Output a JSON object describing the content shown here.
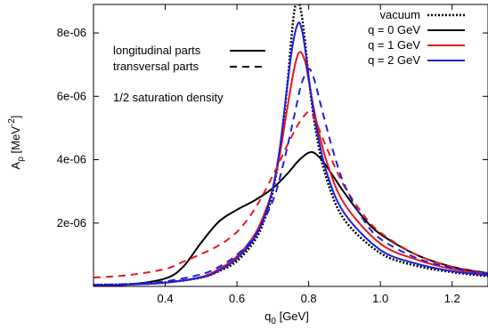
{
  "chart_data": {
    "type": "line",
    "xlabel": "q",
    "xlabel_sub": "0",
    "xlabel_unit": " [GeV]",
    "ylabel": "A",
    "ylabel_sub": "ρ",
    "ylabel_unit": " [MeV",
    "ylabel_sup": "-2",
    "ylabel_close": "]",
    "xlim": [
      0.2,
      1.3
    ],
    "ylim": [
      0,
      8.9e-06
    ],
    "xticks": [
      {
        "v": 0.4,
        "label": "0.4"
      },
      {
        "v": 0.6,
        "label": "0.6"
      },
      {
        "v": 0.8,
        "label": "0.8"
      },
      {
        "v": 1.0,
        "label": "1.0"
      },
      {
        "v": 1.2,
        "label": "1.2"
      }
    ],
    "yticks": [
      {
        "v": 2e-06,
        "label": "2e-06"
      },
      {
        "v": 4e-06,
        "label": "4e-06"
      },
      {
        "v": 6e-06,
        "label": "6e-06"
      },
      {
        "v": 8e-06,
        "label": "8e-06"
      }
    ],
    "legend_position": "top-right",
    "legend": [
      {
        "label": "vacuum",
        "color": "#000000",
        "style": "dotted"
      },
      {
        "label": "q = 0 GeV",
        "color": "#000000",
        "style": "solid"
      },
      {
        "label": "q = 1 GeV",
        "color": "#e31a1c",
        "style": "solid"
      },
      {
        "label": "q = 2 GeV",
        "color": "#1f1fd6",
        "style": "solid"
      }
    ],
    "style_key": [
      {
        "label": "longitudinal parts",
        "style": "solid"
      },
      {
        "label": "transversal parts",
        "style": "dashed"
      }
    ],
    "annotation": "1/2 saturation density",
    "series": [
      {
        "key": "vacuum",
        "color": "#000000",
        "style": "dotted",
        "x": [
          0.2,
          0.3,
          0.4,
          0.5,
          0.55,
          0.6,
          0.65,
          0.68,
          0.7,
          0.72,
          0.74,
          0.75,
          0.76,
          0.77,
          0.78,
          0.79,
          0.8,
          0.82,
          0.85,
          0.9,
          1.0,
          1.1,
          1.2,
          1.3
        ],
        "y": [
          5e-08,
          7e-08,
          1.2e-07,
          2.8e-07,
          4.8e-07,
          8e-07,
          1.45e-06,
          2.2e-06,
          3e-06,
          4.3e-06,
          6.3e-06,
          7.6e-06,
          8.7e-06,
          9e-06,
          8.6e-06,
          7.7e-06,
          6.6e-06,
          4.9e-06,
          3.4e-06,
          2.1e-06,
          1.05e-06,
          6.5e-07,
          4.5e-07,
          3.2e-07
        ]
      },
      {
        "key": "q0_longitudinal",
        "color": "#000000",
        "style": "solid",
        "x": [
          0.2,
          0.3,
          0.4,
          0.45,
          0.5,
          0.55,
          0.6,
          0.65,
          0.7,
          0.74,
          0.77,
          0.79,
          0.8,
          0.81,
          0.82,
          0.84,
          0.87,
          0.9,
          0.95,
          1.0,
          1.1,
          1.2,
          1.3
        ],
        "y": [
          3e-08,
          6e-08,
          2.5e-07,
          6.2e-07,
          1.38e-06,
          2.05e-06,
          2.42e-06,
          2.72e-06,
          3.1e-06,
          3.55e-06,
          3.95e-06,
          4.15e-06,
          4.22e-06,
          4.24e-06,
          4.18e-06,
          3.95e-06,
          3.45e-06,
          2.95e-06,
          2.2e-06,
          1.65e-06,
          1e-06,
          6.2e-07,
          4.2e-07
        ]
      },
      {
        "key": "q1_longitudinal",
        "color": "#e31a1c",
        "style": "solid",
        "x": [
          0.2,
          0.3,
          0.4,
          0.5,
          0.55,
          0.6,
          0.65,
          0.68,
          0.7,
          0.72,
          0.74,
          0.76,
          0.775,
          0.79,
          0.8,
          0.82,
          0.85,
          0.9,
          1.0,
          1.1,
          1.2,
          1.3
        ],
        "y": [
          4e-08,
          6e-08,
          1.2e-07,
          3e-07,
          5.5e-07,
          9.5e-07,
          1.65e-06,
          2.4e-06,
          3.1e-06,
          4.2e-06,
          5.6e-06,
          6.9e-06,
          7.4e-06,
          7.1e-06,
          6.5e-06,
          5.3e-06,
          3.95e-06,
          2.6e-06,
          1.35e-06,
          8.5e-07,
          5.5e-07,
          4e-07
        ]
      },
      {
        "key": "q2_longitudinal",
        "color": "#1f1fd6",
        "style": "solid",
        "x": [
          0.2,
          0.3,
          0.4,
          0.5,
          0.55,
          0.6,
          0.65,
          0.68,
          0.7,
          0.72,
          0.74,
          0.755,
          0.77,
          0.78,
          0.79,
          0.8,
          0.82,
          0.85,
          0.9,
          1.0,
          1.1,
          1.2,
          1.3
        ],
        "y": [
          4e-08,
          6e-08,
          1.2e-07,
          2.8e-07,
          5e-07,
          8.8e-07,
          1.55e-06,
          2.3e-06,
          3.1e-06,
          4.4e-06,
          6.3e-06,
          7.6e-06,
          8.3e-06,
          8.15e-06,
          7.5e-06,
          6.6e-06,
          5.1e-06,
          3.6e-06,
          2.3e-06,
          1.15e-06,
          7.2e-07,
          4.8e-07,
          3.5e-07
        ]
      },
      {
        "key": "q1_transversal",
        "color": "#e31a1c",
        "style": "dashed",
        "x": [
          0.2,
          0.3,
          0.4,
          0.45,
          0.5,
          0.55,
          0.6,
          0.65,
          0.7,
          0.74,
          0.77,
          0.79,
          0.8,
          0.81,
          0.82,
          0.84,
          0.87,
          0.9,
          0.95,
          1.0,
          1.1,
          1.2,
          1.3
        ],
        "y": [
          2.8e-07,
          3.6e-07,
          5.5e-07,
          7.8e-07,
          1.02e-06,
          1.3e-06,
          1.72e-06,
          2.45e-06,
          3.5e-06,
          4.45e-06,
          5.1e-06,
          5.42e-06,
          5.5e-06,
          5.42e-06,
          5.22e-06,
          4.65e-06,
          3.85e-06,
          3.15e-06,
          2.3e-06,
          1.7e-06,
          1e-06,
          6.2e-07,
          4.2e-07
        ]
      },
      {
        "key": "q2_transversal",
        "color": "#1f1fd6",
        "style": "dashed",
        "x": [
          0.2,
          0.3,
          0.4,
          0.5,
          0.55,
          0.6,
          0.65,
          0.7,
          0.73,
          0.76,
          0.78,
          0.8,
          0.81,
          0.82,
          0.84,
          0.87,
          0.9,
          0.95,
          1.0,
          1.1,
          1.2,
          1.3
        ],
        "y": [
          5e-08,
          8e-08,
          1.6e-07,
          3.8e-07,
          6.2e-07,
          1e-06,
          1.6e-06,
          2.7e-06,
          3.9e-06,
          5.4e-06,
          6.4e-06,
          6.85e-06,
          6.7e-06,
          6.35e-06,
          5.45e-06,
          4.2e-06,
          3.2e-06,
          2.15e-06,
          1.5e-06,
          9e-07,
          5.8e-07,
          4e-07
        ]
      }
    ]
  }
}
